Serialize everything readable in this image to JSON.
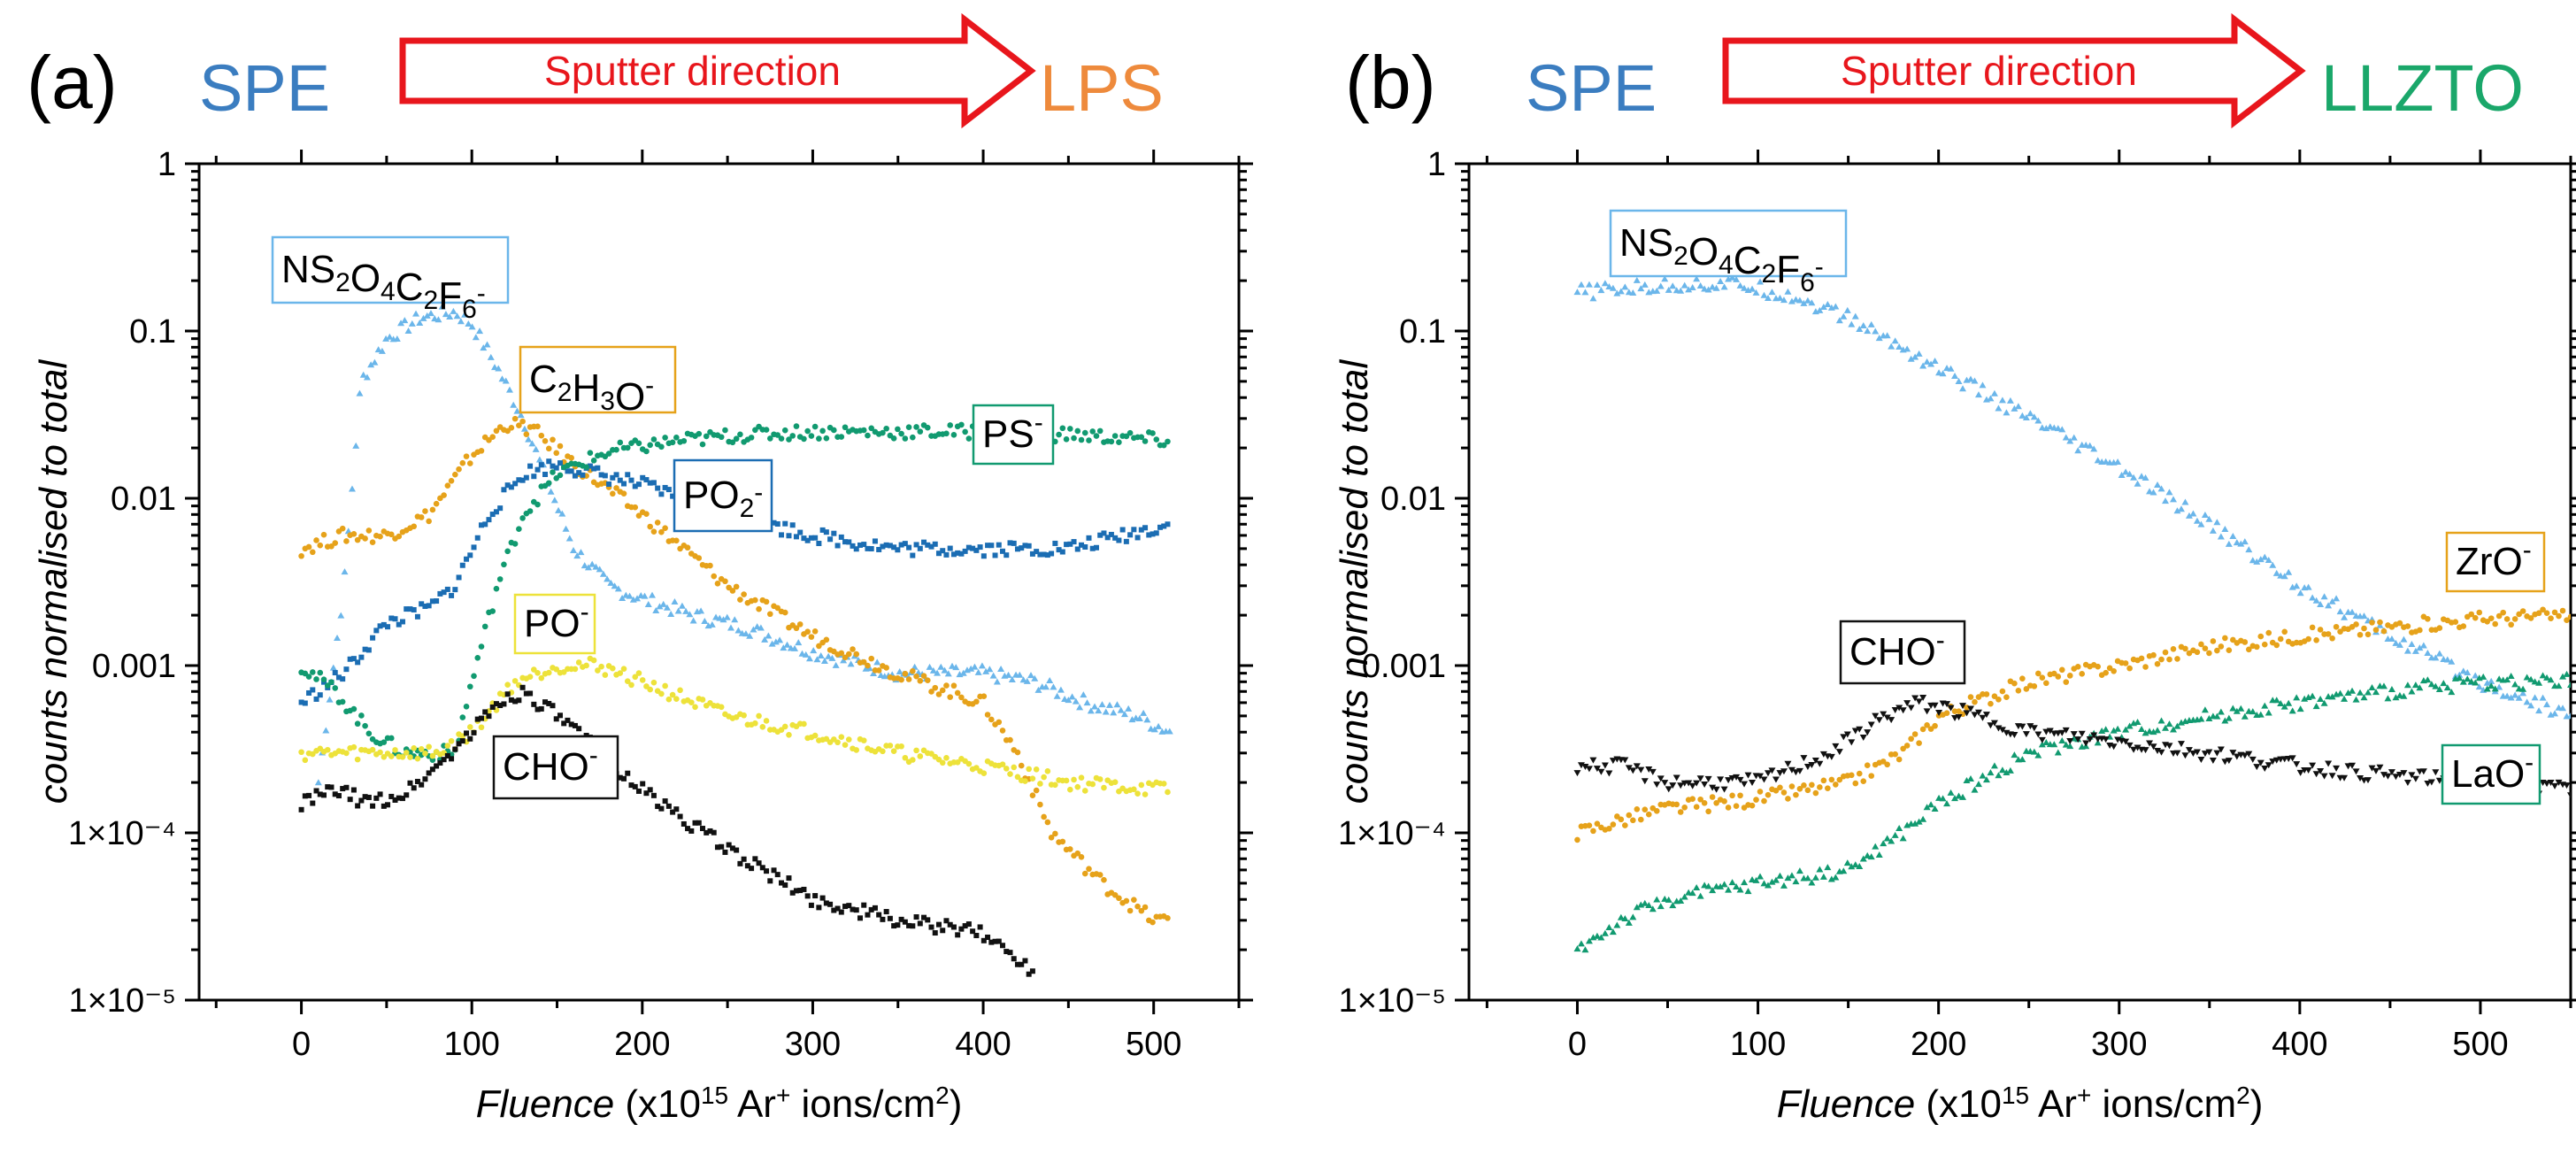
{
  "chart_data": [
    {
      "type": "scatter",
      "panel": "(a)",
      "banner_left": "SPE",
      "banner_left_color": "#3b7dc0",
      "banner_arrow_text": "Sputter direction",
      "banner_arrow_color": "#e8161c",
      "banner_right": "LPS",
      "banner_right_color": "#ee8a3c",
      "xlabel_italic": "Fluence",
      "xlabel_rest": "(x10",
      "xlabel_sup1": "15",
      "xlabel_mid": " Ar",
      "xlabel_sup2": "+",
      "xlabel_tail": " ions/cm",
      "xlabel_sup3": "2",
      "xlabel_close": ")",
      "ylabel": "counts normalised to total",
      "xlim": [
        -60,
        550
      ],
      "yscale": "log",
      "ylim": [
        1e-05,
        1
      ],
      "xticks": [
        0,
        100,
        200,
        300,
        400,
        500
      ],
      "xtick_labels": [
        "0",
        "100",
        "200",
        "300",
        "400",
        "500"
      ],
      "yticks": [
        1e-05,
        0.0001,
        0.001,
        0.01,
        0.1,
        1
      ],
      "ytick_labels": [
        "1×10⁻⁵",
        "1×10⁻⁴",
        "0.001",
        "0.01",
        "0.1",
        "1"
      ],
      "series": [
        {
          "name": "NS2O4C2F6-",
          "color": "#6bb6ea",
          "marker": "triangle",
          "x": [
            10,
            25,
            35,
            50,
            70,
            90,
            100,
            115,
            130,
            145,
            160,
            180,
            200,
            230,
            260,
            300,
            350,
            400,
            430,
            460,
            490,
            510
          ],
          "y": [
            0.0002,
            0.003,
            0.05,
            0.09,
            0.12,
            0.13,
            0.11,
            0.06,
            0.03,
            0.012,
            0.005,
            0.003,
            0.0025,
            0.002,
            0.0017,
            0.0012,
            0.0009,
            0.0009,
            0.0008,
            0.0006,
            0.0005,
            0.0004
          ]
        },
        {
          "name": "C2H3O-",
          "color": "#e6a21a",
          "marker": "circle",
          "x": [
            0,
            25,
            50,
            75,
            100,
            120,
            135,
            160,
            200,
            250,
            300,
            350,
            400,
            420,
            440,
            470,
            500,
            510
          ],
          "y": [
            0.005,
            0.006,
            0.006,
            0.008,
            0.018,
            0.028,
            0.026,
            0.016,
            0.008,
            0.003,
            0.0015,
            0.0009,
            0.0006,
            0.0003,
            0.0001,
            5e-05,
            3e-05,
            3e-05
          ]
        },
        {
          "name": "PO2-",
          "color": "#1b6db3",
          "marker": "square",
          "x": [
            0,
            25,
            50,
            75,
            90,
            110,
            130,
            150,
            200,
            250,
            300,
            350,
            400,
            450,
            510
          ],
          "y": [
            0.0006,
            0.0009,
            0.0018,
            0.0022,
            0.003,
            0.008,
            0.014,
            0.016,
            0.012,
            0.008,
            0.006,
            0.005,
            0.005,
            0.005,
            0.007
          ]
        },
        {
          "name": "PS-",
          "color": "#119a70",
          "marker": "circle",
          "x": [
            0,
            20,
            40,
            60,
            90,
            100,
            115,
            130,
            150,
            180,
            220,
            260,
            300,
            350,
            400,
            450,
            510
          ],
          "y": [
            0.001,
            0.0007,
            0.0004,
            0.0003,
            0.0003,
            0.0008,
            0.003,
            0.008,
            0.014,
            0.019,
            0.022,
            0.024,
            0.025,
            0.025,
            0.025,
            0.024,
            0.022
          ]
        },
        {
          "name": "PO-",
          "color": "#ede23a",
          "marker": "circle",
          "x": [
            0,
            30,
            60,
            80,
            100,
            125,
            150,
            175,
            200,
            250,
            300,
            350,
            400,
            450,
            510
          ],
          "y": [
            0.0003,
            0.0003,
            0.0003,
            0.0003,
            0.0004,
            0.0008,
            0.001,
            0.001,
            0.0008,
            0.0005,
            0.0004,
            0.0003,
            0.00025,
            0.0002,
            0.00018
          ]
        },
        {
          "name": "CHO-",
          "color": "#111111",
          "marker": "square",
          "x": [
            0,
            20,
            40,
            60,
            80,
            100,
            115,
            130,
            150,
            175,
            200,
            250,
            300,
            350,
            400,
            430
          ],
          "y": [
            0.00015,
            0.00018,
            0.00015,
            0.00017,
            0.00025,
            0.0004,
            0.0006,
            0.0007,
            0.0005,
            0.0003,
            0.00018,
            8e-05,
            4e-05,
            3e-05,
            2.5e-05,
            1.5e-05
          ]
        }
      ],
      "annotations": [
        {
          "key": "ns",
          "base": "NS",
          "sub1": "2",
          "mid1": "O",
          "sub2": "4",
          "mid2": "C",
          "sub3": "2",
          "mid3": "F",
          "sub4": "6",
          "sup": "-",
          "border": "#6bb6ea"
        },
        {
          "key": "c2h3o",
          "base": "C",
          "sub1": "2",
          "mid1": "H",
          "sub2": "3",
          "mid2": "O",
          "sup": "-",
          "border": "#e6a21a"
        },
        {
          "key": "ps",
          "base": "PS",
          "sup": "-",
          "border": "#119a70"
        },
        {
          "key": "po2",
          "base": "PO",
          "sub1": "2",
          "sup": "-",
          "border": "#1b6db3"
        },
        {
          "key": "po",
          "base": "PO",
          "sup": "-",
          "border": "#ede23a"
        },
        {
          "key": "cho",
          "base": "CHO",
          "sup": "-",
          "border": "#111111"
        }
      ]
    },
    {
      "type": "scatter",
      "panel": "(b)",
      "banner_left": "SPE",
      "banner_left_color": "#3b7dc0",
      "banner_arrow_text": "Sputter direction",
      "banner_arrow_color": "#e8161c",
      "banner_right": "LLZTO",
      "banner_right_color": "#1aa76a",
      "xlabel_italic": "Fluence",
      "xlabel_rest": "(x10",
      "xlabel_sup1": "15",
      "xlabel_mid": " Ar",
      "xlabel_sup2": "+",
      "xlabel_tail": " ions/cm",
      "xlabel_sup3": "2",
      "xlabel_close": ")",
      "ylabel": "counts normalised to total",
      "xlim": [
        -60,
        550
      ],
      "yscale": "log",
      "ylim": [
        1e-05,
        1
      ],
      "xticks": [
        0,
        100,
        200,
        300,
        400,
        500
      ],
      "xtick_labels": [
        "0",
        "100",
        "200",
        "300",
        "400",
        "500"
      ],
      "yticks": [
        1e-05,
        0.0001,
        0.001,
        0.01,
        0.1,
        1
      ],
      "ytick_labels": [
        "1×10⁻⁵",
        "1×10⁻⁴",
        "0.001",
        "0.01",
        "0.1",
        "1"
      ],
      "series": [
        {
          "name": "NS2O4C2F6-",
          "color": "#6bb6ea",
          "marker": "triangle",
          "x": [
            0,
            30,
            60,
            90,
            120,
            150,
            200,
            250,
            300,
            350,
            400,
            450,
            500,
            550
          ],
          "y": [
            0.17,
            0.18,
            0.19,
            0.19,
            0.16,
            0.12,
            0.06,
            0.03,
            0.015,
            0.007,
            0.003,
            0.0015,
            0.0008,
            0.0005
          ]
        },
        {
          "name": "ZrO-",
          "color": "#e6a21a",
          "marker": "circle",
          "x": [
            0,
            25,
            50,
            100,
            150,
            180,
            200,
            250,
            300,
            350,
            400,
            450,
            500,
            550
          ],
          "y": [
            0.0001,
            0.00012,
            0.00014,
            0.00016,
            0.0002,
            0.0003,
            0.0005,
            0.0008,
            0.001,
            0.0013,
            0.0015,
            0.0017,
            0.0019,
            0.002
          ]
        },
        {
          "name": "LaO-",
          "color": "#119a70",
          "marker": "triangle",
          "x": [
            0,
            25,
            50,
            100,
            150,
            180,
            200,
            250,
            300,
            350,
            400,
            450,
            500,
            550
          ],
          "y": [
            2e-05,
            3e-05,
            4e-05,
            5e-05,
            6e-05,
            0.0001,
            0.00015,
            0.0003,
            0.0004,
            0.0005,
            0.0006,
            0.0007,
            0.0008,
            0.0008
          ]
        },
        {
          "name": "CHO-",
          "color": "#111111",
          "marker": "triangle-down",
          "x": [
            0,
            25,
            50,
            100,
            140,
            170,
            190,
            220,
            250,
            300,
            350,
            400,
            450,
            500,
            550
          ],
          "y": [
            0.00025,
            0.00025,
            0.0002,
            0.0002,
            0.0003,
            0.0005,
            0.0006,
            0.0005,
            0.0004,
            0.00035,
            0.0003,
            0.00025,
            0.00022,
            0.0002,
            0.00018
          ]
        }
      ],
      "annotations": [
        {
          "key": "ns",
          "base": "NS",
          "sub1": "2",
          "mid1": "O",
          "sub2": "4",
          "mid2": "C",
          "sub3": "2",
          "mid3": "F",
          "sub4": "6",
          "sup": "-",
          "border": "#6bb6ea"
        },
        {
          "key": "zro",
          "base": "ZrO",
          "sup": "-",
          "border": "#e6a21a"
        },
        {
          "key": "cho",
          "base": "CHO",
          "sup": "-",
          "border": "#111111"
        },
        {
          "key": "lao",
          "base": "LaO",
          "sup": "-",
          "border": "#119a70"
        }
      ]
    }
  ]
}
